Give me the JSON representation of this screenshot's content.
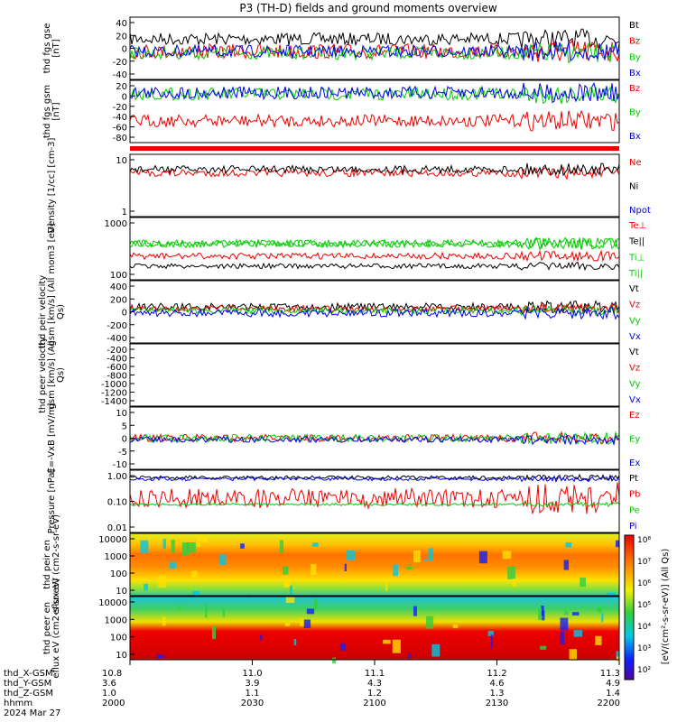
{
  "title": "P3 (TH-D) fields and ground moments overview",
  "colors": {
    "black": "#000000",
    "red": "#ee0000",
    "green": "#00cc00",
    "blue": "#0000ee"
  },
  "colorbar_ticks": [
    "10²",
    "10³",
    "10⁴",
    "10⁵",
    "10⁶",
    "10⁷",
    "10⁸"
  ],
  "colorbar_label": "[eV/(cm²-s-sr-eV)] (All Qs)",
  "xaxis": {
    "columns": [
      "10.8",
      "11.0",
      "11.1",
      "11.2",
      "11.3"
    ],
    "rows": [
      {
        "label": "thd_X-GSM",
        "values": [
          "10.8",
          "11.0",
          "11.1",
          "11.2",
          "11.3"
        ]
      },
      {
        "label": "thd_Y-GSM",
        "values": [
          "3.6",
          "3.9",
          "4.3",
          "4.6",
          "4.9"
        ]
      },
      {
        "label": "thd_Z-GSM",
        "values": [
          "1.0",
          "1.1",
          "1.2",
          "1.3",
          "1.4"
        ]
      },
      {
        "label": "hhmm",
        "values": [
          "2000",
          "2030",
          "2100",
          "2130",
          "2200"
        ]
      }
    ],
    "date": "2024 Mar 27"
  },
  "chart_data": [
    {
      "type": "line",
      "ylabel": "thd fgs gse [nT]",
      "yticks": [
        "40",
        "20",
        "0",
        "-20",
        "-40"
      ],
      "ylim": [
        -45,
        55
      ],
      "series": [
        {
          "name": "Bt",
          "color": "black"
        },
        {
          "name": "Bz",
          "color": "red"
        },
        {
          "name": "By",
          "color": "green"
        },
        {
          "name": "Bx",
          "color": "blue"
        }
      ]
    },
    {
      "type": "line",
      "ylabel": "thd fgs gsm [nT]",
      "yticks": [
        "20",
        "0",
        "-20",
        "-40",
        "-60",
        "-80"
      ],
      "ylim": [
        -100,
        30
      ],
      "series": [
        {
          "name": "Bz",
          "color": "red"
        },
        {
          "name": "By",
          "color": "green"
        },
        {
          "name": "Bx",
          "color": "blue"
        }
      ]
    },
    {
      "type": "line",
      "ylabel": "Density [1/cc] [cm-3]",
      "yticks": [
        "10",
        "1"
      ],
      "log": true,
      "series": [
        {
          "name": "Ne",
          "color": "red"
        },
        {
          "name": "Ni",
          "color": "black"
        },
        {
          "name": "Npot",
          "color": "blue"
        }
      ]
    },
    {
      "type": "line",
      "ylabel": "mom3 [eV]",
      "yticks": [
        "1000",
        "100"
      ],
      "log": true,
      "series": [
        {
          "name": "Te⊥",
          "color": "red"
        },
        {
          "name": "Te||",
          "color": "black"
        },
        {
          "name": "Ti⊥",
          "color": "green"
        },
        {
          "name": "Ti||",
          "color": "green"
        }
      ]
    },
    {
      "type": "line",
      "ylabel": "thd peir velocity gsm [km/s] (All Qs)",
      "yticks": [
        "400",
        "200",
        "0",
        "-200",
        "-400"
      ],
      "ylim": [
        -410,
        460
      ],
      "series": [
        {
          "name": "Vt",
          "color": "black"
        },
        {
          "name": "Vz",
          "color": "red"
        },
        {
          "name": "Vy",
          "color": "green"
        },
        {
          "name": "Vx",
          "color": "blue"
        }
      ]
    },
    {
      "type": "line",
      "ylabel": "thd peer velocity gsm [km/s] (All Qs)",
      "yticks": [
        "-200",
        "-400",
        "-600",
        "-800",
        "-1000",
        "-1200",
        "-1400"
      ],
      "ylim": [
        -1500,
        -100
      ],
      "series": [
        {
          "name": "Vt",
          "color": "black"
        },
        {
          "name": "Vz",
          "color": "red"
        },
        {
          "name": "Vy",
          "color": "green"
        },
        {
          "name": "Vx",
          "color": "blue"
        }
      ]
    },
    {
      "type": "line",
      "ylabel": "E=-VxB [mV/m]",
      "yticks": [
        "10",
        "5",
        "0",
        "-5",
        "-10"
      ],
      "ylim": [
        -11,
        11
      ],
      "series": [
        {
          "name": "Ez",
          "color": "red"
        },
        {
          "name": "Ey",
          "color": "green"
        },
        {
          "name": "Ex",
          "color": "blue"
        }
      ]
    },
    {
      "type": "line",
      "ylabel": "Pressure [nPa]",
      "yticks": [
        "1.00",
        "0.10",
        "0.01"
      ],
      "log": true,
      "series": [
        {
          "name": "Pt",
          "color": "black"
        },
        {
          "name": "Pb",
          "color": "red"
        },
        {
          "name": "Pe",
          "color": "green"
        },
        {
          "name": "Pi",
          "color": "blue"
        }
      ]
    },
    {
      "type": "heatmap",
      "ylabel": "thd peir en eflux eV (cm2-s-sr-eV)",
      "yticks": [
        "10000",
        "1000",
        "100",
        "10"
      ]
    },
    {
      "type": "heatmap",
      "ylabel": "thd peer en eflux eV (cm2-s-sr-eV)",
      "yticks": [
        "10000",
        "1000",
        "100",
        "10"
      ]
    }
  ]
}
